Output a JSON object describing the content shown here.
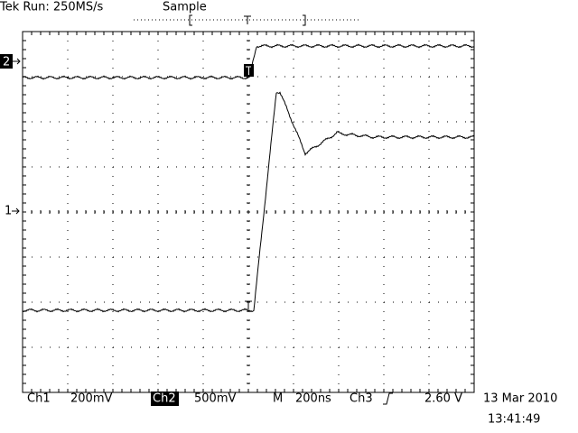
{
  "header": {
    "status": "Tek Run: 250MS/s",
    "mode": "Sample"
  },
  "markers": {
    "ch2": "2",
    "ch1": "1"
  },
  "footer": {
    "ch1_label": "Ch1",
    "ch1_scale": "200mV",
    "ch2_label": "Ch2",
    "ch2_scale": "500mV",
    "time_label": "M",
    "time_scale": "200ns",
    "trigger_source": "Ch3",
    "trigger_level": "2.60 V",
    "date": "13 Mar 2010",
    "time": "13:41:49"
  }
}
